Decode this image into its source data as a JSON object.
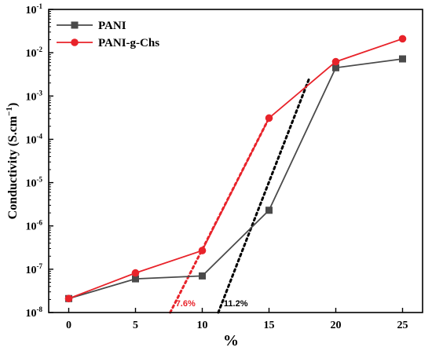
{
  "colors": {
    "PANI": "#4a4a4a",
    "PANI-g-Chs": "#e8232a",
    "axis": "#000000",
    "extrap_PANI": "#000000",
    "extrap_PANI-g-Chs": "#e8232a"
  },
  "chart_data": {
    "type": "line",
    "title": "",
    "xlabel": "%",
    "ylabel": "Conductivity (S.cm",
    "ylabel_exp": "−1",
    "ylabel_close": ")",
    "xlim": [
      -1.5,
      26.5
    ],
    "ylim_log10": [
      -8,
      -1
    ],
    "y_scale": "log",
    "x_ticks": [
      0,
      5,
      10,
      15,
      20,
      25
    ],
    "x_tick_labels": [
      "0",
      "5",
      "10",
      "15",
      "20",
      "25"
    ],
    "y_ticks_log10": [
      -8,
      -7,
      -6,
      -5,
      -4,
      -3,
      -2,
      -1
    ],
    "y_tick_base": "10",
    "y_tick_exps": [
      "-8",
      "-7",
      "-6",
      "-5",
      "-4",
      "-3",
      "-2",
      "-1"
    ],
    "legend_position": "top-left",
    "grid": false,
    "series": [
      {
        "name": "PANI",
        "marker": "square",
        "x": [
          0,
          5,
          10,
          15,
          20,
          25
        ],
        "y": [
          2.1e-08,
          6e-08,
          7e-08,
          2.3e-06,
          0.0045,
          0.0072
        ]
      },
      {
        "name": "PANI-g-Chs",
        "marker": "circle",
        "x": [
          0,
          5,
          10,
          15,
          20,
          25
        ],
        "y": [
          2.1e-08,
          8.2e-08,
          2.7e-07,
          0.00031,
          0.0062,
          0.021
        ]
      }
    ],
    "extrapolations": [
      {
        "series": "PANI-g-Chs",
        "x": [
          7.6,
          15
        ],
        "y": [
          1e-08,
          0.00031
        ],
        "label": "7.6%"
      },
      {
        "series": "PANI",
        "x": [
          11.2,
          18
        ],
        "y": [
          1e-08,
          0.0025
        ],
        "label": "11.2%"
      }
    ]
  }
}
